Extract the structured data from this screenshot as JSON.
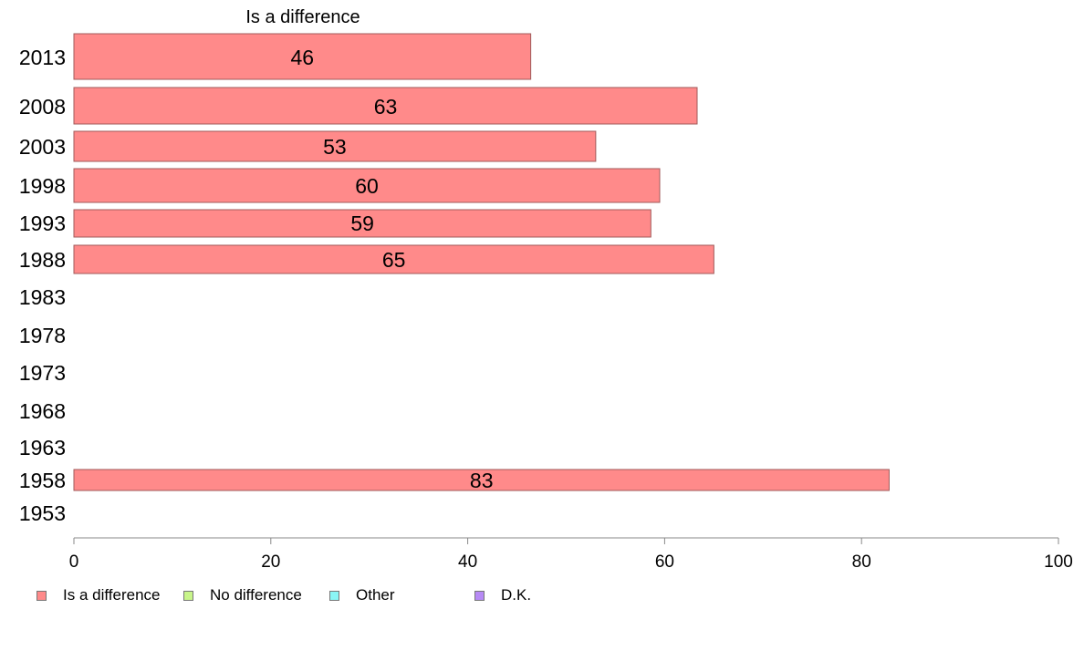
{
  "chart_data": {
    "type": "bar",
    "orientation": "horizontal",
    "title": "Is a difference",
    "categories": [
      "2013",
      "2008",
      "2003",
      "1998",
      "1993",
      "1988",
      "1983",
      "1978",
      "1973",
      "1968",
      "1963",
      "1958",
      "1953"
    ],
    "series": [
      {
        "name": "Is a difference",
        "values": [
          46.4,
          63.3,
          53.0,
          59.5,
          58.6,
          65.0,
          null,
          null,
          null,
          null,
          null,
          82.8,
          null
        ],
        "labels": [
          "46",
          "63",
          "53",
          "60",
          "59",
          "65",
          "",
          "",
          "",
          "",
          "",
          "83",
          ""
        ]
      }
    ],
    "xlim": [
      0,
      100
    ],
    "xticks": [
      "0",
      "20",
      "40",
      "60",
      "80",
      "100"
    ],
    "grid": false,
    "legend_position": "bottom-left",
    "legend": [
      {
        "label": "Is a difference",
        "color": "#ff8a8a"
      },
      {
        "label": "No difference",
        "color": "#c8f58a"
      },
      {
        "label": "Other",
        "color": "#8af5f5"
      },
      {
        "label": "D.K.",
        "color": "#b78af5"
      }
    ],
    "colors": {
      "bar": "#ff8a8a",
      "bar_stroke": "#a05a5a",
      "axis": "#888888"
    }
  }
}
